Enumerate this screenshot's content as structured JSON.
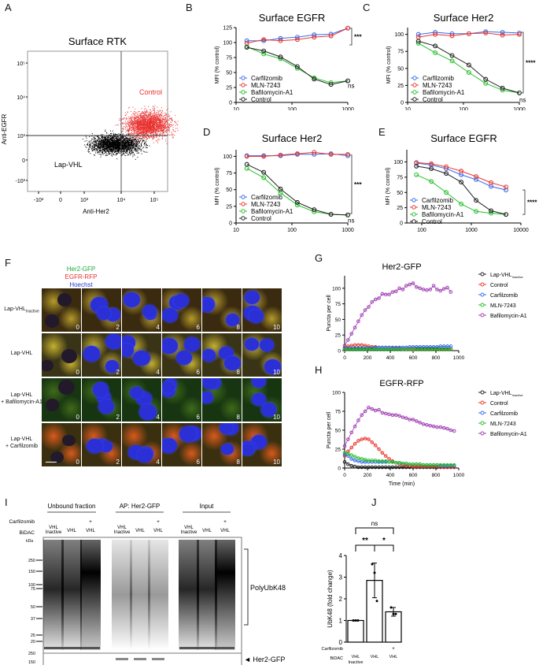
{
  "panels": {
    "A": {
      "letter": "A",
      "title": "Surface RTK",
      "xlabel": "Anti-Her2",
      "ylabel": "Anti-EGFR",
      "xticks": [
        "-10³",
        "0",
        "10³",
        "10⁴",
        "10⁵"
      ],
      "yticks": [
        "10⁵",
        "10⁴",
        "10³",
        "0",
        "-10³"
      ],
      "label_control": "Control",
      "label_treated": "Lap-VHL",
      "colors": {
        "control": "#e8312f",
        "treated": "#000000"
      }
    },
    "B": {
      "letter": "B"
    },
    "C": {
      "letter": "C"
    },
    "D": {
      "letter": "D"
    },
    "E": {
      "letter": "E"
    },
    "F": {
      "letter": "F",
      "channels": [
        {
          "name": "Her2-GFP",
          "color": "#1fa83a"
        },
        {
          "name": "EGFR-RFP",
          "color": "#e8312f"
        },
        {
          "name": "Hoechst",
          "color": "#2a3bd0"
        }
      ],
      "rows": [
        {
          "label": "Lap-VHL",
          "sub": "inactive"
        },
        {
          "label": "Lap-VHL",
          "sub": ""
        },
        {
          "label": "Lap-VHL\n+ Bafilomycin-A1",
          "sub": ""
        },
        {
          "label": "Lap-VHL\n+ Carfilzomib",
          "sub": ""
        }
      ],
      "timepoints": [
        "0",
        "2",
        "4",
        "6",
        "8",
        "10"
      ]
    },
    "G": {
      "letter": "G"
    },
    "H": {
      "letter": "H"
    },
    "I": {
      "letter": "I",
      "groups": [
        "Unbound fraction",
        "AP: Her2-GFP",
        "Input"
      ],
      "row_labels": [
        "Carfilzomib",
        "BiDAC"
      ],
      "lanes": [
        {
          "carfilzomib": "",
          "bidac": "VHL\nInactive"
        },
        {
          "carfilzomib": "",
          "bidac": "VHL"
        },
        {
          "carfilzomib": "+",
          "bidac": "VHL"
        }
      ],
      "kda_label": "kDa",
      "markers_top": [
        "250",
        "150",
        "100",
        "75",
        "50",
        "37",
        "25",
        "20"
      ],
      "markers_bottom": [
        "250",
        "150"
      ],
      "bracket_label": "PolyUbK48",
      "band_label": "◄ Her2-GFP"
    },
    "J": {
      "letter": "J"
    }
  },
  "chart_data": [
    {
      "panel": "B",
      "type": "line",
      "title": "Surface EGFR",
      "xlabel": "Lap-VHL (nM)",
      "ylabel": "MFI (% control)",
      "xscale": "log",
      "xlim": [
        10,
        1000
      ],
      "ylim": [
        0,
        125
      ],
      "xticks": [
        10,
        100,
        1000
      ],
      "yticks": [
        0,
        25,
        50,
        75,
        100,
        125
      ],
      "x": [
        15.6,
        31.25,
        62.5,
        125,
        250,
        500,
        1000
      ],
      "series": [
        {
          "name": "Carfilzomib",
          "color": "#3b6cf0",
          "values": [
            103,
            103,
            107,
            109,
            113,
            114,
            124
          ]
        },
        {
          "name": "MLN-7243",
          "color": "#e8392f",
          "values": [
            99,
            105,
            103,
            105,
            109,
            111,
            124
          ]
        },
        {
          "name": "Bafilomycin-A1",
          "color": "#27c02b",
          "values": [
            93,
            81,
            73,
            57,
            41,
            33,
            36
          ]
        },
        {
          "name": "Control",
          "color": "#222222",
          "values": [
            92,
            86,
            76,
            60,
            39,
            30,
            36
          ]
        }
      ],
      "annotations": [
        "****",
        "ns"
      ]
    },
    {
      "panel": "C",
      "type": "line",
      "title": "Surface Her2",
      "xlabel": "Lap-VHL (nM)",
      "ylabel": "MFI (% control)",
      "xscale": "log",
      "xlim": [
        10,
        1000
      ],
      "ylim": [
        0,
        110
      ],
      "xticks": [
        10,
        100,
        1000
      ],
      "yticks": [
        0,
        25,
        50,
        75,
        100
      ],
      "x": [
        15.6,
        31.25,
        62.5,
        125,
        250,
        500,
        1000
      ],
      "series": [
        {
          "name": "Carfilzomib",
          "color": "#3b6cf0",
          "values": [
            100,
            103,
            101,
            101,
            104,
            103,
            102
          ]
        },
        {
          "name": "MLN-7243",
          "color": "#e8392f",
          "values": [
            96,
            100,
            98,
            101,
            102,
            99,
            100
          ]
        },
        {
          "name": "Bafilomycin-A1",
          "color": "#27c02b",
          "values": [
            87,
            73,
            61,
            44,
            28,
            18,
            14
          ]
        },
        {
          "name": "Control",
          "color": "#222222",
          "values": [
            90,
            83,
            69,
            55,
            34,
            21,
            14
          ]
        }
      ],
      "annotations": [
        "****",
        "ns"
      ]
    },
    {
      "panel": "D",
      "type": "line",
      "title": "Surface Her2",
      "xlabel": "Tuc-VHL (nM)",
      "ylabel": "MFI (% control)",
      "xscale": "log",
      "xlim": [
        10,
        1000
      ],
      "ylim": [
        0,
        110
      ],
      "xticks": [
        10,
        100,
        1000
      ],
      "yticks": [
        0,
        25,
        50,
        75,
        100
      ],
      "x": [
        15.6,
        31.25,
        62.5,
        125,
        250,
        500,
        1000
      ],
      "series": [
        {
          "name": "Carfilzomib",
          "color": "#3b6cf0",
          "values": [
            101,
            101,
            101,
            103,
            103,
            104,
            101
          ]
        },
        {
          "name": "MLN-7243",
          "color": "#e8392f",
          "values": [
            100,
            100,
            102,
            104,
            106,
            103,
            103
          ]
        },
        {
          "name": "Bafilomycin-A1",
          "color": "#27c02b",
          "values": [
            82,
            68,
            45,
            27,
            17,
            13,
            12
          ]
        },
        {
          "name": "Control",
          "color": "#222222",
          "values": [
            88,
            76,
            51,
            31,
            20,
            13,
            12
          ]
        }
      ],
      "annotations": [
        "****",
        "ns"
      ]
    },
    {
      "panel": "E",
      "type": "line",
      "title": "Surface EGFR",
      "xlabel": "EGF (pg/ml)",
      "ylabel": "MFI (% control)",
      "xscale": "log",
      "xlim": [
        50,
        10000
      ],
      "ylim": [
        0,
        120
      ],
      "xticks": [
        100,
        1000,
        10000
      ],
      "yticks": [
        0,
        25,
        50,
        75,
        100
      ],
      "x": [
        78,
        156,
        312,
        625,
        1250,
        2500,
        5000
      ],
      "series": [
        {
          "name": "Carfilzomib",
          "color": "#3b6cf0",
          "values": [
            98,
            95,
            89,
            79,
            71,
            60,
            54
          ]
        },
        {
          "name": "MLN-7243",
          "color": "#e8392f",
          "values": [
            99,
            97,
            92,
            85,
            76,
            66,
            59
          ]
        },
        {
          "name": "Bafilomycin-A1",
          "color": "#27c02b",
          "values": [
            79,
            68,
            50,
            31,
            19,
            16,
            14
          ]
        },
        {
          "name": "Control",
          "color": "#222222",
          "values": [
            93,
            89,
            81,
            67,
            37,
            20,
            14
          ]
        }
      ],
      "annotations": [
        "****"
      ]
    },
    {
      "panel": "G",
      "type": "line",
      "title": "Her2-GFP",
      "xlabel": "Time (min)",
      "ylabel": "Puncta per cell",
      "xlim": [
        0,
        1000
      ],
      "ylim": [
        0,
        120
      ],
      "xticks": [
        0,
        200,
        400,
        600,
        800,
        1000
      ],
      "yticks": [
        0,
        25,
        50,
        75,
        100
      ],
      "legend": [
        "Lap-VHLinactive",
        "Control",
        "Carfilzomib",
        "MLN-7243",
        "Bafilomycin-A1"
      ],
      "legend_group_label": "Lap-VHL",
      "x": [
        0,
        30,
        60,
        90,
        120,
        150,
        180,
        210,
        240,
        270,
        300,
        330,
        360,
        390,
        420,
        450,
        480,
        510,
        540,
        570,
        600,
        630,
        660,
        690,
        720,
        750,
        780,
        810,
        840,
        870,
        900,
        930
      ],
      "series": [
        {
          "name": "Lap-VHLinactive",
          "color": "#222222",
          "values": [
            3,
            3,
            3,
            3,
            3,
            3,
            3,
            3,
            3,
            3,
            3,
            3,
            3,
            3,
            3,
            3,
            3,
            3,
            3,
            3,
            3,
            3,
            3,
            3,
            3,
            3,
            3,
            3,
            3,
            3,
            3,
            3
          ]
        },
        {
          "name": "Control",
          "color": "#e8392f",
          "values": [
            5,
            7,
            8,
            9,
            9,
            9,
            8,
            7,
            6,
            6,
            5,
            5,
            5,
            5,
            4,
            4,
            4,
            3,
            3,
            3,
            3,
            2,
            2,
            2,
            2,
            2,
            2,
            2,
            2,
            2,
            2,
            2
          ]
        },
        {
          "name": "Carfilzomib",
          "color": "#3b6cf0",
          "values": [
            4,
            4,
            4,
            4,
            4,
            4,
            4,
            4,
            4,
            5,
            5,
            5,
            5,
            5,
            5,
            5,
            5,
            5,
            5,
            6,
            6,
            6,
            6,
            6,
            6,
            6,
            6,
            6,
            7,
            7,
            7,
            7
          ]
        },
        {
          "name": "MLN-7243",
          "color": "#27c02b",
          "values": [
            2,
            2,
            2,
            2,
            2,
            2,
            2,
            2,
            2,
            2,
            2,
            2,
            2,
            2,
            2,
            2,
            2,
            2,
            2,
            2,
            2,
            2,
            2,
            2,
            2,
            2,
            2,
            2,
            2,
            2,
            2,
            2
          ]
        },
        {
          "name": "Bafilomycin-A1",
          "color": "#a13fb5",
          "values": [
            8,
            17,
            27,
            37,
            47,
            57,
            65,
            70,
            78,
            82,
            84,
            91,
            90,
            90,
            94,
            95,
            100,
            98,
            104,
            106,
            108,
            102,
            100,
            98,
            97,
            98,
            104,
            98,
            96,
            99,
            101,
            94
          ]
        }
      ]
    },
    {
      "panel": "H",
      "type": "line",
      "title": "EGFR-RFP",
      "xlabel": "Time (min)",
      "ylabel": "Puncta per cell",
      "xlim": [
        0,
        1000
      ],
      "ylim": [
        0,
        100
      ],
      "xticks": [
        0,
        200,
        400,
        600,
        800,
        1000
      ],
      "yticks": [
        0,
        25,
        50,
        75,
        100
      ],
      "legend": [
        "Lap-VHLinactive",
        "Control",
        "Carfilzomib",
        "MLN-7243",
        "Bafilomycin-A1"
      ],
      "legend_group_label": "Lap-VHL",
      "x": [
        0,
        30,
        60,
        90,
        120,
        150,
        180,
        210,
        240,
        270,
        300,
        330,
        360,
        390,
        420,
        450,
        480,
        510,
        540,
        570,
        600,
        630,
        660,
        690,
        720,
        750,
        780,
        810,
        840,
        870,
        900,
        930,
        960
      ],
      "series": [
        {
          "name": "Lap-VHLinactive",
          "color": "#222222",
          "values": [
            8,
            5,
            3,
            2,
            1,
            1,
            1,
            1,
            1,
            1,
            1,
            1,
            1,
            1,
            1,
            1,
            1,
            1,
            1,
            1,
            1,
            1,
            1,
            1,
            1,
            1,
            1,
            1,
            1,
            1,
            1,
            1,
            1
          ]
        },
        {
          "name": "Control",
          "color": "#e8392f",
          "values": [
            16,
            22,
            27,
            32,
            36,
            38,
            39,
            38,
            34,
            30,
            25,
            20,
            16,
            12,
            9,
            7,
            5,
            4,
            3,
            3,
            2,
            2,
            2,
            2,
            2,
            2,
            2,
            2,
            1,
            1,
            1,
            1,
            1
          ]
        },
        {
          "name": "Carfilzomib",
          "color": "#3b6cf0",
          "values": [
            18,
            16,
            12,
            10,
            9,
            8,
            8,
            8,
            8,
            8,
            8,
            8,
            8,
            8,
            8,
            7,
            7,
            6,
            6,
            5,
            5,
            5,
            5,
            4,
            4,
            4,
            4,
            4,
            3,
            3,
            3,
            3,
            3
          ]
        },
        {
          "name": "MLN-7243",
          "color": "#27c02b",
          "values": [
            20,
            19,
            17,
            15,
            13,
            12,
            11,
            10,
            10,
            10,
            9,
            9,
            9,
            8,
            8,
            7,
            7,
            6,
            6,
            5,
            5,
            5,
            5,
            4,
            4,
            4,
            4,
            4,
            4,
            4,
            4,
            4,
            4
          ]
        },
        {
          "name": "Bafilomycin-A1",
          "color": "#a13fb5",
          "values": [
            29,
            38,
            47,
            55,
            63,
            70,
            75,
            80,
            78,
            76,
            77,
            73,
            72,
            71,
            70,
            70,
            69,
            67,
            66,
            64,
            64,
            62,
            60,
            58,
            57,
            56,
            55,
            54,
            54,
            53,
            52,
            50,
            49
          ]
        }
      ]
    },
    {
      "panel": "J",
      "type": "bar",
      "title": "",
      "ylabel": "UbK48 (fold change)",
      "ylim": [
        0,
        4
      ],
      "yticks": [
        0,
        1,
        2,
        3,
        4
      ],
      "row_labels": [
        "Carfilzomib",
        "BiDAC"
      ],
      "categories": [
        "VHL Inactive",
        "VHL",
        "+ VHL"
      ],
      "carfilzomib": [
        "",
        "",
        "+"
      ],
      "bidac": [
        "VHL\nInactive",
        "VHL",
        "VHL"
      ],
      "values": [
        1.0,
        2.85,
        1.4
      ],
      "errors": [
        0.02,
        0.8,
        0.2
      ],
      "points": [
        [
          1.0,
          1.0,
          1.0
        ],
        [
          3.6,
          3.2,
          1.9
        ],
        [
          1.6,
          1.3,
          1.3
        ]
      ],
      "annotations": [
        {
          "between": [
            0,
            1
          ],
          "label": "**"
        },
        {
          "between": [
            1,
            2
          ],
          "label": "*"
        },
        {
          "between": [
            0,
            2
          ],
          "label": "ns"
        }
      ]
    }
  ]
}
